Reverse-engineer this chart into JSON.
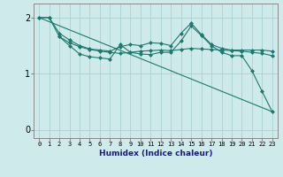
{
  "xlabel": "Humidex (Indice chaleur)",
  "ylabel": "",
  "bg_color": "#ceeaea",
  "line_color": "#1a7a6e",
  "grid_color": "#afd4d4",
  "x_ticks": [
    0,
    1,
    2,
    3,
    4,
    5,
    6,
    7,
    8,
    9,
    10,
    11,
    12,
    13,
    14,
    15,
    16,
    17,
    18,
    19,
    20,
    21,
    22,
    23
  ],
  "ylim": [
    -0.15,
    2.25
  ],
  "xlim": [
    -0.5,
    23.5
  ],
  "yticks": [
    0,
    1,
    2
  ],
  "series": [
    {
      "x": [
        0,
        1,
        2,
        3,
        4,
        5,
        6,
        7,
        8,
        9,
        10,
        11,
        12,
        13,
        14,
        15,
        16,
        17,
        18,
        19,
        20,
        21,
        22,
        23
      ],
      "y": [
        2.0,
        2.0,
        1.72,
        1.6,
        1.5,
        1.44,
        1.42,
        1.4,
        1.48,
        1.52,
        1.5,
        1.55,
        1.54,
        1.5,
        1.72,
        1.9,
        1.7,
        1.52,
        1.45,
        1.42,
        1.42,
        1.42,
        1.42,
        1.4
      ],
      "marker": "D",
      "ms": 2.5
    },
    {
      "x": [
        0,
        1,
        2,
        3,
        4,
        5,
        6,
        7,
        8,
        9,
        10,
        11,
        12,
        13,
        14,
        15,
        16,
        17,
        18,
        19,
        20,
        21,
        22,
        23
      ],
      "y": [
        2.0,
        2.0,
        1.66,
        1.55,
        1.48,
        1.43,
        1.4,
        1.38,
        1.36,
        1.38,
        1.4,
        1.41,
        1.42,
        1.41,
        1.43,
        1.45,
        1.44,
        1.43,
        1.42,
        1.41,
        1.4,
        1.38,
        1.36,
        1.32
      ],
      "marker": "D",
      "ms": 2.5
    },
    {
      "x": [
        2,
        3,
        4,
        5,
        6,
        7,
        8,
        9,
        10,
        11,
        12,
        13,
        14,
        15,
        16,
        17,
        18,
        19,
        20,
        21,
        22,
        23
      ],
      "y": [
        1.66,
        1.5,
        1.35,
        1.3,
        1.28,
        1.26,
        1.52,
        1.38,
        1.35,
        1.34,
        1.38,
        1.38,
        1.58,
        1.85,
        1.68,
        1.5,
        1.38,
        1.32,
        1.32,
        1.05,
        0.68,
        0.32
      ],
      "marker": "D",
      "ms": 2.5
    },
    {
      "x": [
        0,
        23
      ],
      "y": [
        2.0,
        0.32
      ],
      "marker": null,
      "ms": 0
    }
  ]
}
